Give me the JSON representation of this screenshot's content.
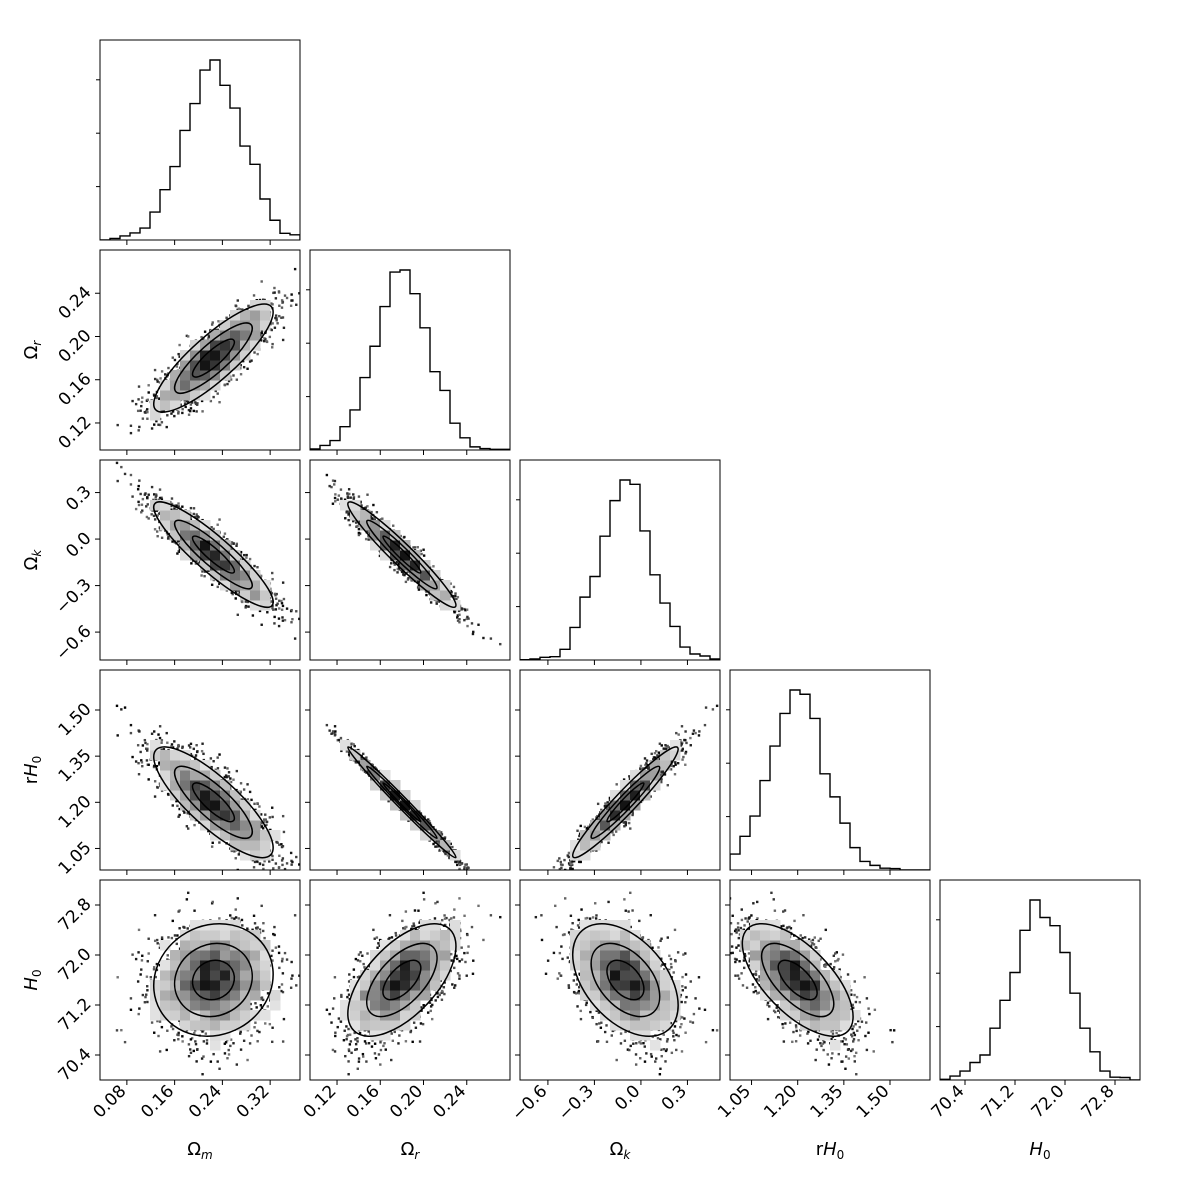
{
  "chart_data": {
    "type": "corner",
    "parameters": [
      {
        "label": "Ω",
        "sub": "m",
        "ticks": [
          0.08,
          0.16,
          0.24,
          0.32
        ],
        "tick_labels": [
          "0.08",
          "0.16",
          "0.24",
          "0.32"
        ],
        "range": [
          0.035,
          0.37
        ],
        "mean": 0.225,
        "sd": 0.05
      },
      {
        "label": "Ω",
        "sub": "r",
        "ticks": [
          0.12,
          0.16,
          0.2,
          0.24
        ],
        "tick_labels": [
          "0.12",
          "0.16",
          "0.20",
          "0.24"
        ],
        "range": [
          0.095,
          0.28
        ],
        "mean": 0.18,
        "sd": 0.025
      },
      {
        "label": "Ω",
        "sub": "k",
        "ticks": [
          -0.6,
          -0.3,
          0.0,
          0.3
        ],
        "tick_labels": [
          "−0.6",
          "−0.3",
          "0.0",
          "0.3"
        ],
        "range": [
          -0.78,
          0.51
        ],
        "mean": -0.1,
        "sd": 0.17
      },
      {
        "label": "rH",
        "sub": "0",
        "ticks": [
          1.05,
          1.2,
          1.35,
          1.5
        ],
        "tick_labels": [
          "1.05",
          "1.20",
          "1.35",
          "1.50"
        ],
        "range": [
          0.98,
          1.63
        ],
        "mean": 1.2,
        "sd": 0.09
      },
      {
        "label": "H",
        "sub": "0",
        "ticks": [
          70.4,
          71.2,
          72.0,
          72.8
        ],
        "tick_labels": [
          "70.4",
          "71.2",
          "72.0",
          "72.8"
        ],
        "range": [
          70.0,
          73.2
        ],
        "mean": 71.6,
        "sd": 0.45
      }
    ],
    "correlations": [
      [
        1.0,
        0.85,
        -0.9,
        -0.82,
        0.1
      ],
      [
        0.85,
        1.0,
        -0.96,
        -0.99,
        0.6
      ],
      [
        -0.9,
        -0.96,
        1.0,
        0.96,
        -0.45
      ],
      [
        -0.82,
        -0.99,
        0.96,
        1.0,
        -0.65
      ],
      [
        0.1,
        0.6,
        -0.45,
        -0.65,
        1.0
      ]
    ],
    "histogram_bins": 20,
    "contour_levels": 3
  }
}
